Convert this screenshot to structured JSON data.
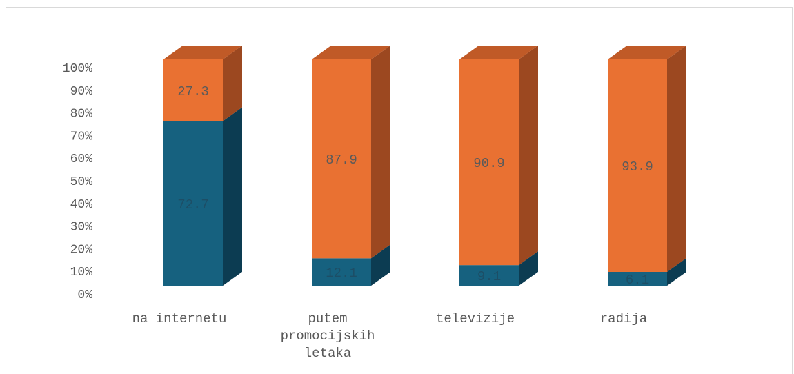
{
  "chart_data": {
    "type": "bar",
    "stacked": true,
    "percent_stacked": true,
    "three_d": true,
    "categories": [
      [
        "na internetu"
      ],
      [
        "putem",
        "promocijskih",
        "letaka"
      ],
      [
        "televizije"
      ],
      [
        "radija"
      ]
    ],
    "series": [
      {
        "values": [
          72.7,
          12.1,
          9.1,
          6.1
        ],
        "labels": [
          "72.7",
          "12.1",
          "9.1",
          "6.1"
        ],
        "color": "#16617f",
        "side_color": "#0c3c52",
        "top_color": "#1b6e8e",
        "label_color": "#1d4e66"
      },
      {
        "values": [
          27.3,
          87.9,
          90.9,
          93.9
        ],
        "labels": [
          "27.3",
          "87.9",
          "90.9",
          "93.9"
        ],
        "color": "#e97132",
        "side_color": "#9c4820",
        "top_color": "#c05a27",
        "label_color": "#5a5a5a"
      }
    ],
    "ylim": [
      0,
      100
    ],
    "yticks": [
      "0%",
      "10%",
      "20%",
      "30%",
      "40%",
      "50%",
      "60%",
      "70%",
      "80%",
      "90%",
      "100%"
    ],
    "grid": false,
    "legend": "none"
  }
}
